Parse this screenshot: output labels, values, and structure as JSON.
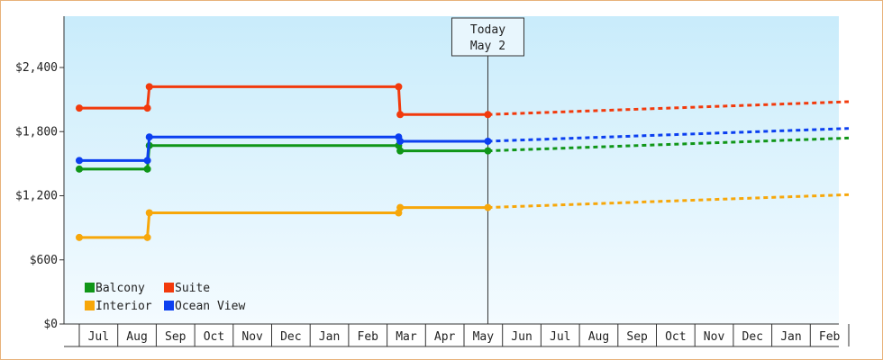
{
  "chart_data": {
    "type": "line",
    "title": "",
    "xlabel": "",
    "ylabel": "",
    "ylim": [
      0,
      2880
    ],
    "y_ticks": [
      0,
      600,
      1200,
      1800,
      2400
    ],
    "y_tick_labels": [
      "$0",
      "$600",
      "$1,200",
      "$1,800",
      "$2,400"
    ],
    "grid": false,
    "legend_placement": "bottom-left",
    "x_months": [
      "Jul",
      "Aug",
      "Sep",
      "Oct",
      "Nov",
      "Dec",
      "Jan",
      "Feb",
      "Mar",
      "Apr",
      "May",
      "Jun",
      "Jul",
      "Aug",
      "Sep",
      "Oct",
      "Nov",
      "Dec",
      "Jan",
      "Feb"
    ],
    "today": {
      "line1": "Today",
      "line2": "May 2"
    },
    "series": [
      {
        "name": "Balcony",
        "color": "#109618",
        "history": [
          [
            0,
            1450
          ],
          [
            1.77,
            1450
          ],
          [
            1.82,
            1670
          ],
          [
            8.3,
            1670
          ],
          [
            8.34,
            1620
          ],
          [
            10.62,
            1620
          ]
        ],
        "markers": [
          [
            0,
            1450
          ],
          [
            1.77,
            1450
          ],
          [
            1.82,
            1670
          ],
          [
            8.3,
            1670
          ],
          [
            8.34,
            1620
          ],
          [
            10.62,
            1620
          ]
        ],
        "forecast": [
          [
            10.62,
            1620
          ],
          [
            20.0,
            1740
          ]
        ]
      },
      {
        "name": "Suite",
        "color": "#f23a0c",
        "history": [
          [
            0,
            2020
          ],
          [
            1.77,
            2020
          ],
          [
            1.82,
            2220
          ],
          [
            8.3,
            2220
          ],
          [
            8.34,
            1960
          ],
          [
            10.62,
            1960
          ]
        ],
        "markers": [
          [
            0,
            2020
          ],
          [
            1.77,
            2020
          ],
          [
            1.82,
            2220
          ],
          [
            8.3,
            2220
          ],
          [
            8.34,
            1960
          ],
          [
            10.62,
            1960
          ]
        ],
        "forecast": [
          [
            10.62,
            1960
          ],
          [
            20.0,
            2080
          ]
        ]
      },
      {
        "name": "Interior",
        "color": "#f7a70a",
        "history": [
          [
            0,
            810
          ],
          [
            1.77,
            810
          ],
          [
            1.82,
            1040
          ],
          [
            8.3,
            1040
          ],
          [
            8.34,
            1090
          ],
          [
            10.62,
            1090
          ]
        ],
        "markers": [
          [
            0,
            810
          ],
          [
            1.77,
            810
          ],
          [
            1.82,
            1040
          ],
          [
            8.3,
            1040
          ],
          [
            8.34,
            1090
          ],
          [
            10.62,
            1090
          ]
        ],
        "forecast": [
          [
            10.62,
            1090
          ],
          [
            20.0,
            1210
          ]
        ]
      },
      {
        "name": "Ocean View",
        "color": "#0b3ff0",
        "history": [
          [
            0,
            1530
          ],
          [
            1.77,
            1530
          ],
          [
            1.82,
            1750
          ],
          [
            8.3,
            1750
          ],
          [
            8.34,
            1710
          ],
          [
            10.62,
            1710
          ]
        ],
        "markers": [
          [
            0,
            1530
          ],
          [
            1.77,
            1530
          ],
          [
            1.82,
            1750
          ],
          [
            8.3,
            1750
          ],
          [
            8.34,
            1710
          ],
          [
            10.62,
            1710
          ]
        ],
        "forecast": [
          [
            10.62,
            1710
          ],
          [
            20.0,
            1830
          ]
        ]
      }
    ],
    "legend_order": [
      "Balcony",
      "Suite",
      "Interior",
      "Ocean View"
    ]
  }
}
